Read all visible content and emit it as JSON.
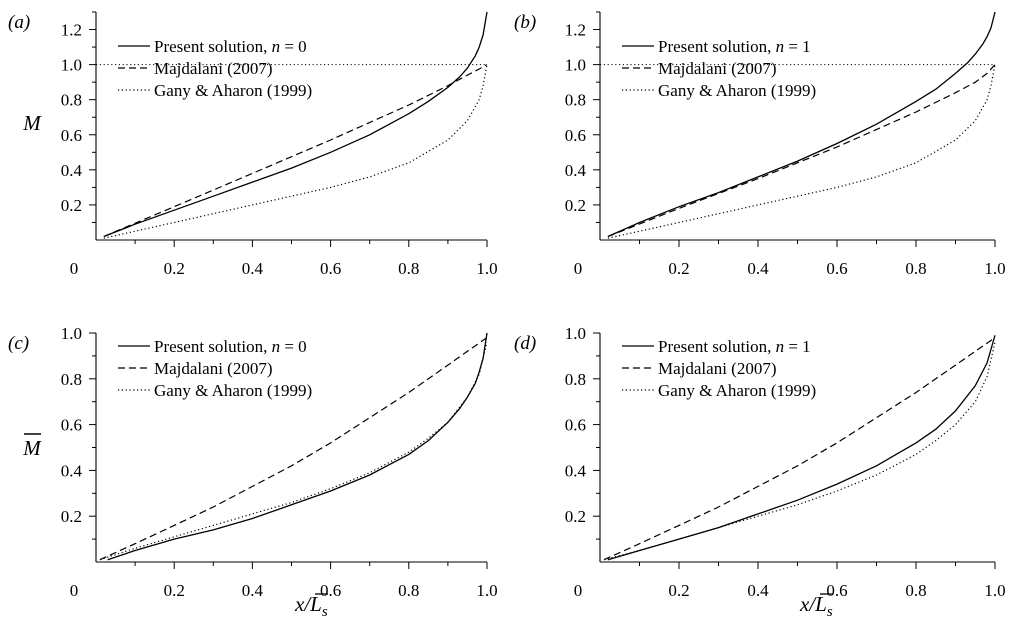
{
  "figure": {
    "x_axis_label": {
      "base": "x/",
      "overbar": "L",
      "sub": "s"
    },
    "y_axis_label_top": "M",
    "y_axis_label_bottom": "M",
    "colors": {
      "line": "#000000",
      "background": "#ffffff"
    }
  },
  "chart_data": [
    {
      "type": "line",
      "panel": "(a)",
      "xlabel": "",
      "ylabel": "M",
      "xlim": [
        0,
        1.0
      ],
      "ylim": [
        0,
        1.3
      ],
      "x_ticks": [
        "0.2",
        "0.4",
        "0.6",
        "0.8",
        "1.0"
      ],
      "y_ticks": [
        "0.2",
        "0.4",
        "0.6",
        "0.8",
        "1.0",
        "1.2"
      ],
      "origin_label": "0",
      "legend_placement": "top-left",
      "reference_line": {
        "y": 1.0,
        "style": "dotted"
      },
      "series": [
        {
          "name": "Present solution, n = 0",
          "label_text": "Present solution, ",
          "label_var": "n",
          "label_value": " = 0",
          "style": "solid",
          "x": [
            0.02,
            0.1,
            0.2,
            0.3,
            0.4,
            0.5,
            0.6,
            0.7,
            0.8,
            0.85,
            0.9,
            0.93,
            0.95,
            0.97,
            0.98,
            0.99,
            1.0
          ],
          "y": [
            0.02,
            0.09,
            0.17,
            0.25,
            0.33,
            0.41,
            0.5,
            0.6,
            0.72,
            0.79,
            0.87,
            0.93,
            0.98,
            1.05,
            1.1,
            1.17,
            1.3
          ]
        },
        {
          "name": "Majdalani (2007)",
          "style": "dashed",
          "x": [
            0.02,
            0.2,
            0.4,
            0.6,
            0.8,
            0.9,
            0.95,
            0.98,
            1.0
          ],
          "y": [
            0.02,
            0.19,
            0.38,
            0.57,
            0.77,
            0.88,
            0.94,
            0.975,
            1.0
          ]
        },
        {
          "name": "Gany & Aharon (1999)",
          "style": "dotted",
          "x": [
            0.02,
            0.2,
            0.4,
            0.6,
            0.7,
            0.8,
            0.9,
            0.95,
            0.98,
            0.99,
            1.0
          ],
          "y": [
            0.01,
            0.1,
            0.2,
            0.3,
            0.36,
            0.44,
            0.57,
            0.68,
            0.8,
            0.88,
            1.0
          ]
        }
      ]
    },
    {
      "type": "line",
      "panel": "(b)",
      "xlabel": "",
      "ylabel": "",
      "xlim": [
        0,
        1.0
      ],
      "ylim": [
        0,
        1.3
      ],
      "x_ticks": [
        "0.2",
        "0.4",
        "0.6",
        "0.8",
        "1.0"
      ],
      "y_ticks": [
        "0.2",
        "0.4",
        "0.6",
        "0.8",
        "1.0",
        "1.2"
      ],
      "origin_label": "0",
      "legend_placement": "top-left",
      "reference_line": {
        "y": 1.0,
        "style": "dotted"
      },
      "series": [
        {
          "name": "Present solution, n = 1",
          "label_text": "Present solution, ",
          "label_var": "n",
          "label_value": " = 1",
          "style": "solid",
          "x": [
            0.02,
            0.1,
            0.2,
            0.3,
            0.4,
            0.5,
            0.6,
            0.7,
            0.8,
            0.85,
            0.9,
            0.93,
            0.95,
            0.97,
            0.98,
            0.99,
            1.0
          ],
          "y": [
            0.02,
            0.1,
            0.19,
            0.27,
            0.36,
            0.45,
            0.55,
            0.66,
            0.79,
            0.86,
            0.95,
            1.01,
            1.06,
            1.12,
            1.16,
            1.21,
            1.3
          ]
        },
        {
          "name": "Majdalani (2007)",
          "style": "dashed",
          "x": [
            0.02,
            0.2,
            0.4,
            0.6,
            0.8,
            0.9,
            0.95,
            0.98,
            1.0
          ],
          "y": [
            0.02,
            0.18,
            0.35,
            0.53,
            0.73,
            0.84,
            0.9,
            0.95,
            1.0
          ]
        },
        {
          "name": "Gany & Aharon (1999)",
          "style": "dotted",
          "x": [
            0.02,
            0.2,
            0.4,
            0.6,
            0.7,
            0.8,
            0.9,
            0.95,
            0.98,
            0.99,
            1.0
          ],
          "y": [
            0.01,
            0.1,
            0.2,
            0.3,
            0.36,
            0.44,
            0.57,
            0.68,
            0.8,
            0.88,
            1.0
          ]
        }
      ]
    },
    {
      "type": "line",
      "panel": "(c)",
      "xlabel": "x/L_s",
      "ylabel": "M",
      "xlim": [
        0,
        1.0
      ],
      "ylim": [
        0,
        1.0
      ],
      "x_ticks": [
        "0.2",
        "0.4",
        "0.6",
        "0.8",
        "1.0"
      ],
      "y_ticks": [
        "0.2",
        "0.4",
        "0.6",
        "0.8",
        "1.0"
      ],
      "origin_label": "0",
      "legend_placement": "top-left",
      "series": [
        {
          "name": "Present solution, n = 0",
          "label_text": "Present solution, ",
          "label_var": "n",
          "label_value": " = 0",
          "style": "solid",
          "x": [
            0.03,
            0.1,
            0.2,
            0.3,
            0.4,
            0.5,
            0.6,
            0.7,
            0.8,
            0.85,
            0.9,
            0.93,
            0.95,
            0.97,
            0.98,
            0.99,
            1.0
          ],
          "y": [
            0.01,
            0.05,
            0.1,
            0.14,
            0.19,
            0.25,
            0.31,
            0.38,
            0.47,
            0.53,
            0.61,
            0.67,
            0.72,
            0.78,
            0.83,
            0.89,
            1.0
          ]
        },
        {
          "name": "Majdalani (2007)",
          "style": "dashed",
          "x": [
            0.01,
            0.1,
            0.2,
            0.3,
            0.4,
            0.5,
            0.6,
            0.7,
            0.8,
            0.9,
            0.95,
            1.0
          ],
          "y": [
            0.01,
            0.08,
            0.16,
            0.24,
            0.33,
            0.42,
            0.52,
            0.63,
            0.74,
            0.86,
            0.92,
            0.98
          ]
        },
        {
          "name": "Gany & Aharon (1999)",
          "style": "dotted",
          "x": [
            0.01,
            0.1,
            0.2,
            0.3,
            0.4,
            0.5,
            0.6,
            0.7,
            0.8,
            0.85,
            0.9,
            0.95,
            0.98,
            1.0
          ],
          "y": [
            0.01,
            0.06,
            0.11,
            0.16,
            0.21,
            0.26,
            0.32,
            0.39,
            0.48,
            0.54,
            0.61,
            0.72,
            0.82,
            0.96
          ]
        }
      ]
    },
    {
      "type": "line",
      "panel": "(d)",
      "xlabel": "x/L_s",
      "ylabel": "",
      "xlim": [
        0,
        1.0
      ],
      "ylim": [
        0,
        1.0
      ],
      "x_ticks": [
        "0.2",
        "0.4",
        "0.6",
        "0.8",
        "1.0"
      ],
      "y_ticks": [
        "0.2",
        "0.4",
        "0.6",
        "0.8",
        "1.0"
      ],
      "origin_label": "0",
      "legend_placement": "top-left",
      "series": [
        {
          "name": "Present solution, n = 1",
          "label_text": "Present solution, ",
          "label_var": "n",
          "label_value": " = 1",
          "style": "solid",
          "x": [
            0.02,
            0.1,
            0.2,
            0.3,
            0.4,
            0.5,
            0.6,
            0.7,
            0.8,
            0.85,
            0.9,
            0.95,
            0.98,
            1.0
          ],
          "y": [
            0.01,
            0.05,
            0.1,
            0.15,
            0.21,
            0.27,
            0.34,
            0.42,
            0.52,
            0.58,
            0.66,
            0.77,
            0.87,
            0.99
          ]
        },
        {
          "name": "Majdalani (2007)",
          "style": "dashed",
          "x": [
            0.01,
            0.1,
            0.2,
            0.3,
            0.4,
            0.5,
            0.6,
            0.7,
            0.8,
            0.9,
            0.95,
            1.0
          ],
          "y": [
            0.01,
            0.08,
            0.16,
            0.24,
            0.33,
            0.42,
            0.52,
            0.63,
            0.74,
            0.86,
            0.92,
            0.98
          ]
        },
        {
          "name": "Gany & Aharon (1999)",
          "style": "dotted",
          "x": [
            0.01,
            0.1,
            0.2,
            0.3,
            0.4,
            0.5,
            0.6,
            0.7,
            0.8,
            0.85,
            0.9,
            0.95,
            0.98,
            1.0
          ],
          "y": [
            0.01,
            0.05,
            0.1,
            0.15,
            0.2,
            0.25,
            0.31,
            0.38,
            0.47,
            0.53,
            0.6,
            0.7,
            0.81,
            0.96
          ]
        }
      ]
    }
  ]
}
